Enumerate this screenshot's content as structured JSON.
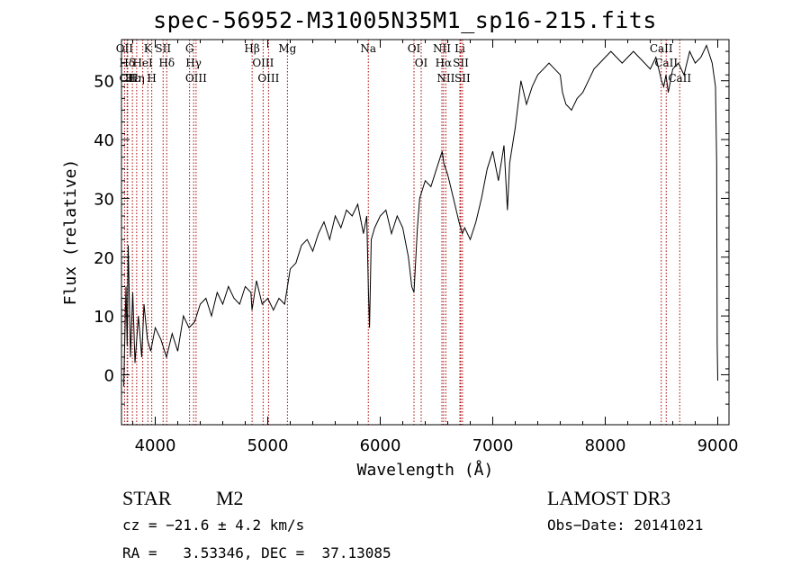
{
  "chart_data": {
    "type": "line",
    "title": "spec-56952-M31005N35M1_sp16-215.fits",
    "xlabel": "Wavelength (Å)",
    "ylabel": "Flux (relative)",
    "xlim": [
      3700,
      9100
    ],
    "ylim": [
      -8.5,
      57
    ],
    "xticks": [
      4000,
      5000,
      6000,
      7000,
      8000,
      9000
    ],
    "xtick_labels": [
      "4000",
      "5000",
      "6000",
      "7000",
      "8000",
      "9000"
    ],
    "yticks": [
      0,
      10,
      20,
      30,
      40,
      50
    ],
    "ytick_labels": [
      "0",
      "10",
      "20",
      "30",
      "40",
      "50"
    ],
    "series": [
      {
        "name": "flux",
        "x": [
          3720,
          3740,
          3750,
          3760,
          3780,
          3800,
          3820,
          3850,
          3880,
          3900,
          3930,
          3960,
          4000,
          4050,
          4100,
          4150,
          4200,
          4250,
          4300,
          4350,
          4400,
          4450,
          4500,
          4550,
          4600,
          4650,
          4700,
          4750,
          4800,
          4850,
          4860,
          4900,
          4950,
          5000,
          5050,
          5100,
          5150,
          5200,
          5250,
          5300,
          5350,
          5400,
          5450,
          5500,
          5550,
          5600,
          5650,
          5700,
          5750,
          5800,
          5850,
          5880,
          5895,
          5905,
          5920,
          5950,
          6000,
          6050,
          6100,
          6150,
          6200,
          6250,
          6280,
          6300,
          6330,
          6350,
          6400,
          6450,
          6500,
          6550,
          6565,
          6600,
          6650,
          6700,
          6730,
          6750,
          6800,
          6850,
          6900,
          6950,
          7000,
          7050,
          7100,
          7130,
          7150,
          7200,
          7250,
          7300,
          7350,
          7400,
          7450,
          7500,
          7550,
          7600,
          7620,
          7650,
          7700,
          7750,
          7800,
          7850,
          7900,
          7950,
          8000,
          8050,
          8100,
          8150,
          8200,
          8250,
          8300,
          8350,
          8400,
          8450,
          8500,
          8520,
          8540,
          8560,
          8600,
          8650,
          8700,
          8750,
          8800,
          8850,
          8900,
          8950,
          8980,
          8990,
          8995,
          9000
        ],
        "y": [
          -2,
          15,
          5,
          22,
          3,
          14,
          2,
          10,
          3,
          12,
          6,
          4,
          8,
          6,
          3,
          7,
          4,
          10,
          8,
          9,
          12,
          13,
          10,
          14,
          12,
          15,
          13,
          12,
          15,
          14,
          11,
          16,
          12,
          13,
          11,
          13,
          12,
          18,
          19,
          22,
          23,
          21,
          24,
          26,
          23,
          27,
          25,
          28,
          27,
          29,
          24,
          27,
          14,
          8,
          23,
          25,
          27,
          28,
          24,
          27,
          25,
          20,
          15,
          14,
          25,
          30,
          33,
          32,
          35,
          38,
          36,
          34,
          30,
          26,
          24,
          25,
          23,
          26,
          30,
          35,
          38,
          33,
          39,
          28,
          36,
          42,
          50,
          46,
          49,
          51,
          52,
          53,
          52,
          51,
          48,
          46,
          45,
          47,
          48,
          50,
          52,
          53,
          54,
          55,
          54,
          53,
          54,
          55,
          54,
          53,
          52,
          54,
          50,
          49,
          51,
          48,
          52,
          53,
          51,
          55,
          53,
          54,
          56,
          53,
          49,
          36,
          5,
          -1
        ]
      }
    ],
    "line_markers": [
      {
        "label": "Hδ",
        "wavelength": 3750
      },
      {
        "label": "CII",
        "wavelength": 3755
      },
      {
        "label": "OII",
        "wavelength": 3727
      },
      {
        "label": "Hε",
        "wavelength": 3797
      },
      {
        "label": "Hη",
        "wavelength": 3835
      },
      {
        "label": "K",
        "wavelength": 3934
      },
      {
        "label": "H",
        "wavelength": 3969
      },
      {
        "label": "HeI",
        "wavelength": 3889
      },
      {
        "label": "SII",
        "wavelength": 4070
      },
      {
        "label": "Hδ",
        "wavelength": 4102
      },
      {
        "label": "G",
        "wavelength": 4305
      },
      {
        "label": "Hγ",
        "wavelength": 4341
      },
      {
        "label": "OIII",
        "wavelength": 4363
      },
      {
        "label": "Hβ",
        "wavelength": 4861
      },
      {
        "label": "OIII",
        "wavelength": 4959
      },
      {
        "label": "OIII",
        "wavelength": 5007
      },
      {
        "label": "Mg",
        "wavelength": 5175
      },
      {
        "label": "Na",
        "wavelength": 5894
      },
      {
        "label": "OI",
        "wavelength": 6300
      },
      {
        "label": "OI",
        "wavelength": 6364
      },
      {
        "label": "NII",
        "wavelength": 6548
      },
      {
        "label": "Hα",
        "wavelength": 6563
      },
      {
        "label": "NII",
        "wavelength": 6583
      },
      {
        "label": "Li",
        "wavelength": 6708
      },
      {
        "label": "SII",
        "wavelength": 6716
      },
      {
        "label": "SII",
        "wavelength": 6731
      },
      {
        "label": "CaII",
        "wavelength": 8498
      },
      {
        "label": "CaII",
        "wavelength": 8542
      },
      {
        "label": "CaII",
        "wavelength": 8662
      }
    ],
    "colors": {
      "line": "#000000",
      "marker": "#aa0000",
      "axis": "#000000"
    }
  },
  "info": {
    "class": "STAR",
    "subclass": "M2",
    "survey": "LAMOST DR3",
    "cz": "cz = −21.6 ± 4.2 km/s",
    "obs_date": "Obs−Date: 20141021",
    "coords": "RA =   3.53346, DEC =  37.13085"
  }
}
